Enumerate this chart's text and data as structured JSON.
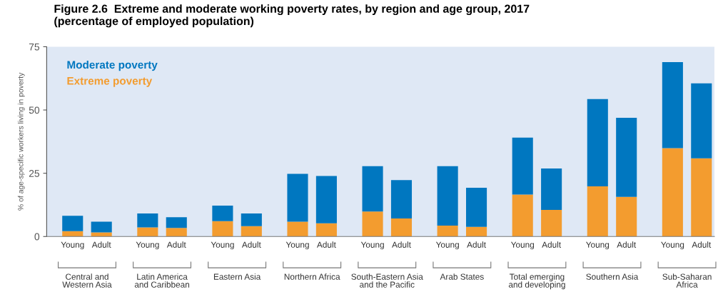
{
  "chart_data": {
    "type": "bar",
    "stacked": true,
    "title": "Figure 2.6  Extreme and moderate working poverty rates, by region and age group, 2017\n(percentage of employed population)",
    "ylabel": "% of age-specific workers living in poverty",
    "categories": [
      "Young",
      "Adult",
      "Young",
      "Adult",
      "Young",
      "Adult",
      "Young",
      "Adult",
      "Young",
      "Adult",
      "Young",
      "Adult",
      "Young",
      "Adult",
      "Young",
      "Adult",
      "Young",
      "Adult"
    ],
    "annotations": [
      "Central and\nWestern Asia",
      "Latin America\nand Caribbean",
      "Eastern Asia",
      "Northern Africa",
      "South-Eastern Asia\nand the Pacific",
      "Arab States",
      "Total emerging\nand developing",
      "Southern Asia",
      "Sub-Saharan\nAfrica"
    ],
    "series": [
      {
        "name": "Extreme poverty",
        "color": "#f39c2f",
        "values": [
          2.1,
          1.6,
          3.6,
          3.4,
          6.1,
          4.1,
          5.9,
          5.2,
          9.9,
          7.1,
          4.3,
          3.8,
          16.6,
          10.5,
          19.8,
          15.7,
          34.9,
          30.9
        ]
      },
      {
        "name": "Moderate poverty",
        "color": "#0077c0",
        "values": [
          6.1,
          4.3,
          5.5,
          4.2,
          6.1,
          5.0,
          18.9,
          18.7,
          17.9,
          15.2,
          23.5,
          15.5,
          22.5,
          16.4,
          34.5,
          31.2,
          34.0,
          29.6
        ]
      }
    ],
    "ylim": [
      0,
      75
    ],
    "yticks": [
      0,
      25,
      50,
      75
    ],
    "grid": false,
    "legend": "top left"
  }
}
